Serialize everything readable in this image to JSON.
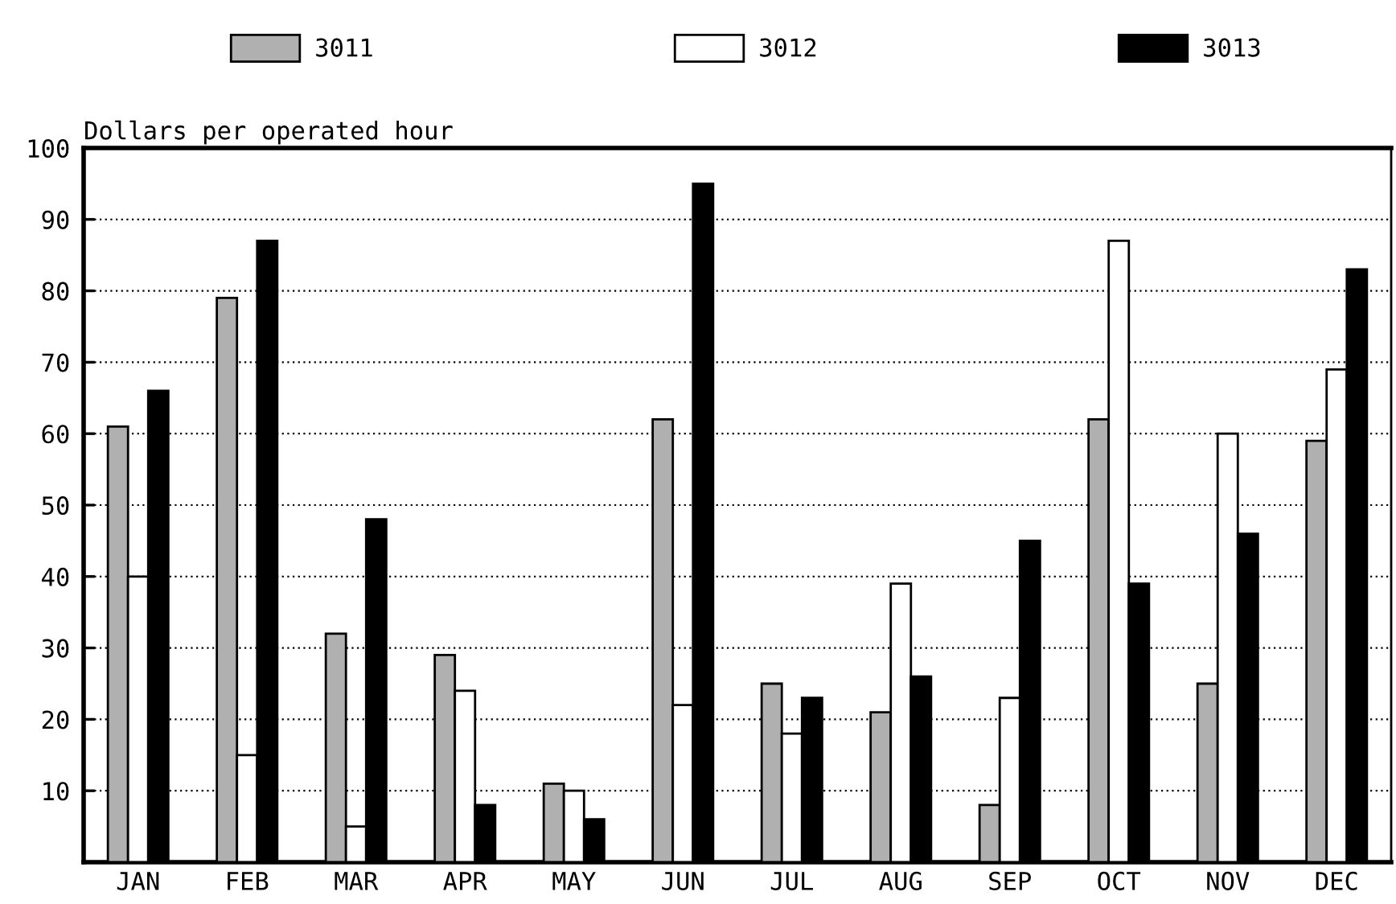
{
  "chart_data": {
    "type": "bar",
    "ylabel": "Dollars per operated hour",
    "categories": [
      "JAN",
      "FEB",
      "MAR",
      "APR",
      "MAY",
      "JUN",
      "JUL",
      "AUG",
      "SEP",
      "OCT",
      "NOV",
      "DEC"
    ],
    "series": [
      {
        "name": "3011",
        "color": "#b0b0b0",
        "values": [
          61,
          79,
          32,
          29,
          11,
          62,
          25,
          21,
          8,
          62,
          25,
          59
        ]
      },
      {
        "name": "3012",
        "color": "#ffffff",
        "values": [
          40,
          15,
          5,
          24,
          10,
          22,
          18,
          39,
          23,
          87,
          60,
          69
        ]
      },
      {
        "name": "3013",
        "color": "#000000",
        "values": [
          66,
          87,
          48,
          8,
          6,
          95,
          23,
          26,
          45,
          39,
          46,
          83
        ]
      }
    ],
    "ylim": [
      0,
      100
    ],
    "yticks": [
      10,
      20,
      30,
      40,
      50,
      60,
      70,
      80,
      90,
      100
    ],
    "grid": "y",
    "legend": "top"
  }
}
